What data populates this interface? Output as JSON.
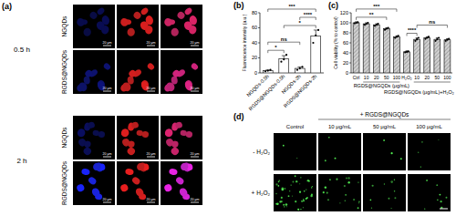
{
  "panel_a": {
    "label": "(a)",
    "time_groups": [
      {
        "text": "0.5 h",
        "rows": [
          "NGQDs",
          "RGDS@NGQDs"
        ]
      },
      {
        "text": "2 h",
        "rows": [
          "NGQDs",
          "RGDS@NGQDs"
        ]
      }
    ],
    "scale_bar": "20 μm"
  },
  "chart_data": [
    {
      "type": "bar",
      "title": "(b)",
      "ylabel": "Fluorescence intensity (a.u.)",
      "categories": [
        "NGQDs-0.5h",
        "RGDS@NGQDs-0.5h",
        "NGQDs-2h",
        "RGDS@NGQDs-2h"
      ],
      "series": [
        {
          "color": "#ffffff",
          "values": [
            3,
            19,
            6,
            49
          ],
          "errors": [
            1,
            4,
            2,
            8
          ],
          "points": [
            [
              2,
              3,
              4
            ],
            [
              15,
              18,
              24
            ],
            [
              4,
              6,
              8
            ],
            [
              40,
              50,
              57
            ]
          ]
        }
      ],
      "ylim": [
        0,
        80
      ],
      "yticks": [
        0,
        20,
        40,
        60,
        80
      ],
      "annotations": [
        {
          "text": "*",
          "from": 0,
          "to": 1
        },
        {
          "text": "ns",
          "from": 0,
          "to": 2
        },
        {
          "text": "*",
          "from": 1,
          "to": 3
        },
        {
          "text": "****",
          "from": 2,
          "to": 3
        },
        {
          "text": "***",
          "from": 0,
          "to": 3
        }
      ]
    },
    {
      "type": "bar",
      "title": "(c)",
      "ylabel": "Cell viability (% to control)",
      "categories": [
        "Ctrl",
        "10",
        "20",
        "50",
        "100",
        "H₂O₂",
        "10",
        "20",
        "50",
        "100"
      ],
      "series": [
        {
          "color": "#d0d0d0",
          "values": [
            100,
            98,
            96,
            88,
            72,
            42,
            67,
            70,
            67,
            66
          ],
          "errors": [
            2,
            2,
            2,
            2,
            2,
            2,
            3,
            2,
            3,
            2
          ],
          "points": [
            [
              99,
              100,
              101
            ],
            [
              96,
              98,
              100
            ],
            [
              94,
              96,
              98
            ],
            [
              86,
              88,
              90
            ],
            [
              70,
              72,
              74
            ],
            [
              41,
              42,
              43
            ],
            [
              64,
              67,
              70
            ],
            [
              68,
              70,
              72
            ],
            [
              64,
              67,
              70
            ],
            [
              64,
              66,
              68
            ]
          ]
        }
      ],
      "ylim": [
        0,
        120
      ],
      "yticks": [
        0,
        20,
        40,
        60,
        80,
        100,
        120
      ],
      "group_labels": [
        {
          "text": "RGDS@NGQDs (μg/mL)",
          "from": 1,
          "to": 4
        },
        {
          "text": "RGDS@NGQDs (μg/mL)+H₂O₂",
          "from": 6,
          "to": 9
        }
      ],
      "annotations": [
        {
          "text": "**",
          "from": 0,
          "to": 3
        },
        {
          "text": "***",
          "from": 0,
          "to": 4
        },
        {
          "text": "****",
          "from": 5,
          "to": 6
        },
        {
          "text": "ns",
          "from": 6,
          "to": 9
        }
      ]
    }
  ],
  "panel_d": {
    "label": "(d)",
    "header": "+ RGDS@NGQDs",
    "columns": [
      "Control",
      "10 μg/mL",
      "50 μg/mL",
      "100 μg/mL"
    ],
    "rows": [
      "- H₂O₂",
      "+ H₂O₂"
    ]
  }
}
